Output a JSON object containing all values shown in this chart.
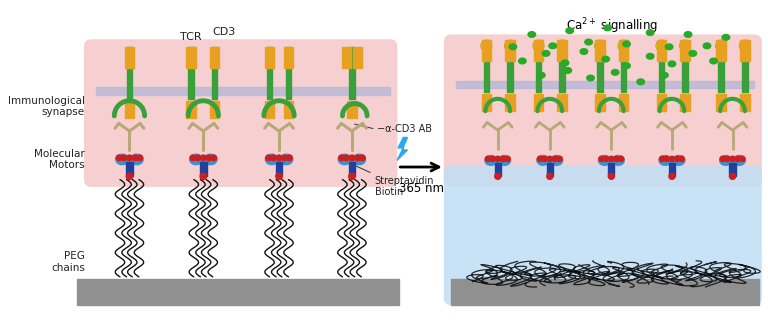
{
  "bg_color": "#ffffff",
  "pink_bg": "#f5c8c8",
  "blue_bg": "#c0dff5",
  "membrane_color": "#b8b8d8",
  "gray_surface": "#909090",
  "green_color": "#3aa03a",
  "gold_color": "#e8a020",
  "blue_motor": "#4090cc",
  "red_dot": "#cc2020",
  "dark_blue": "#2040a0",
  "antibody_color": "#b8a878",
  "green_dot": "#28aa28",
  "yellow_p": "#e8e010",
  "lightning_color": "#28aaee",
  "title_ca": "Ca$^{2+}$ signalling",
  "label_tcr": "TCR",
  "label_cd3": "CD3",
  "label_immuno": "Immunological\nsynapse",
  "label_motors": "Molecular\nMotors",
  "label_peg": "PEG\nchains",
  "label_strep": "Streptavidin\nBiotin",
  "label_ab": "−α-CD3 AB",
  "label_nm": "365 nm"
}
